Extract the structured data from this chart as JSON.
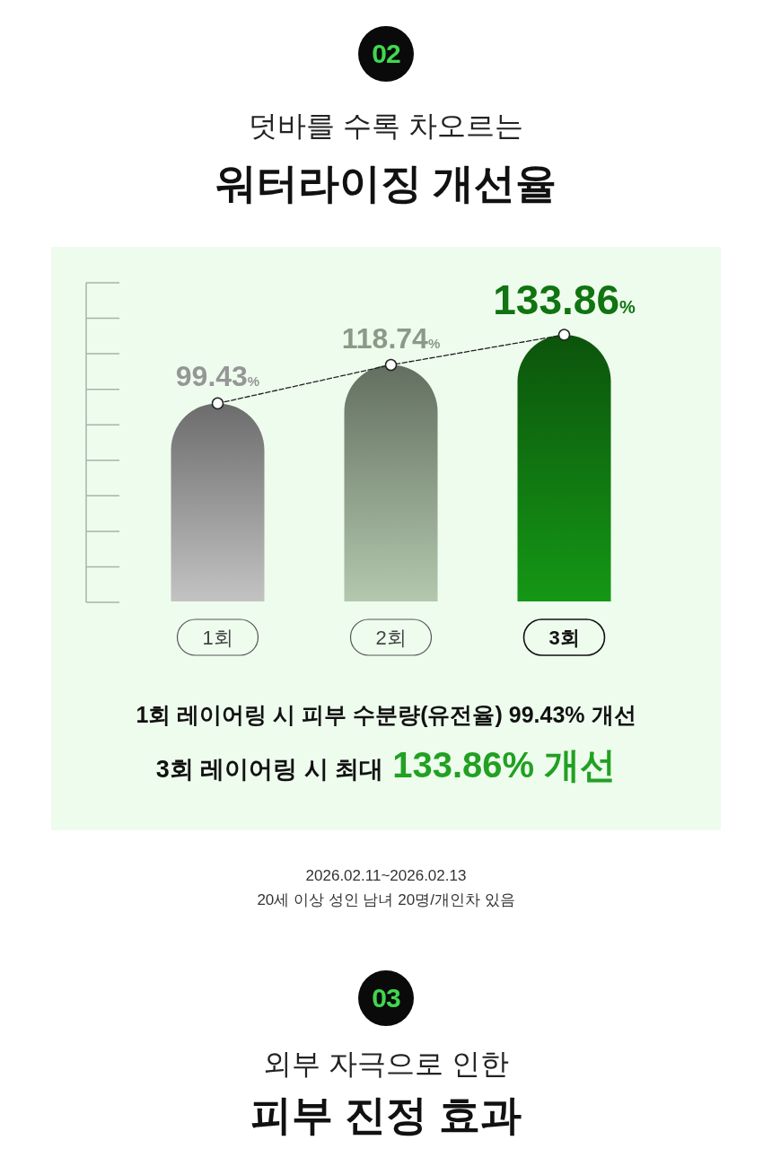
{
  "chart_data": {
    "type": "bar",
    "title": "워터라이징 개선율",
    "subtitle": "덧바를 수록 차오르는",
    "categories": [
      "1회",
      "2회",
      "3회"
    ],
    "series": [
      {
        "type": "bar",
        "colors": [
          "#969696",
          "#8a9a86",
          "#107410"
        ],
        "values": [
          99.43,
          118.74,
          133.86
        ],
        "value_labels": [
          "99.43%",
          "118.74%",
          "133.86%"
        ]
      },
      {
        "type": "line",
        "color": "#222222",
        "values": [
          99.43,
          118.74,
          133.86
        ]
      }
    ],
    "tick_labels": "x",
    "marker": "circle",
    "line_style": "dashed",
    "annotations": [
      "02",
      "1회 레이어링 시 피부 수분량(유전율) 99.43% 개선",
      "3회 레이어링 시 최대",
      "133.86% 개선",
      "2026.02.11~2026.02.13",
      "20세 이상 성인 남녀 20명/개인차 있음",
      "03",
      "외부 자극으로 인한",
      "피부 진정 효과"
    ]
  }
}
